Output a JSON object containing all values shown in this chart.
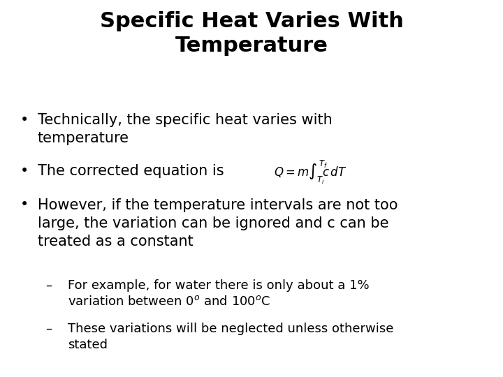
{
  "title_line1": "Specific Heat Varies With",
  "title_line2": "Temperature",
  "title_fontsize": 22,
  "title_fontweight": "bold",
  "background_color": "#ffffff",
  "text_color": "#000000",
  "body_fontsize": 15,
  "sub_fontsize": 13,
  "bullet1": "Technically, the specific heat varies with\ntemperature",
  "bullet2_pre": "The corrected equation is  ",
  "bullet3": "However, if the temperature intervals are not too\nlarge, the variation can be ignored and c can be\ntreated as a constant",
  "sub1_line1": "For example, for water there is only about a 1%",
  "sub1_line2": "variation between 0$^{o}$ and 100$^{o}$C",
  "sub2_line1": "These variations will be neglected unless otherwise",
  "sub2_line2": "stated",
  "font_family": "DejaVu Sans"
}
